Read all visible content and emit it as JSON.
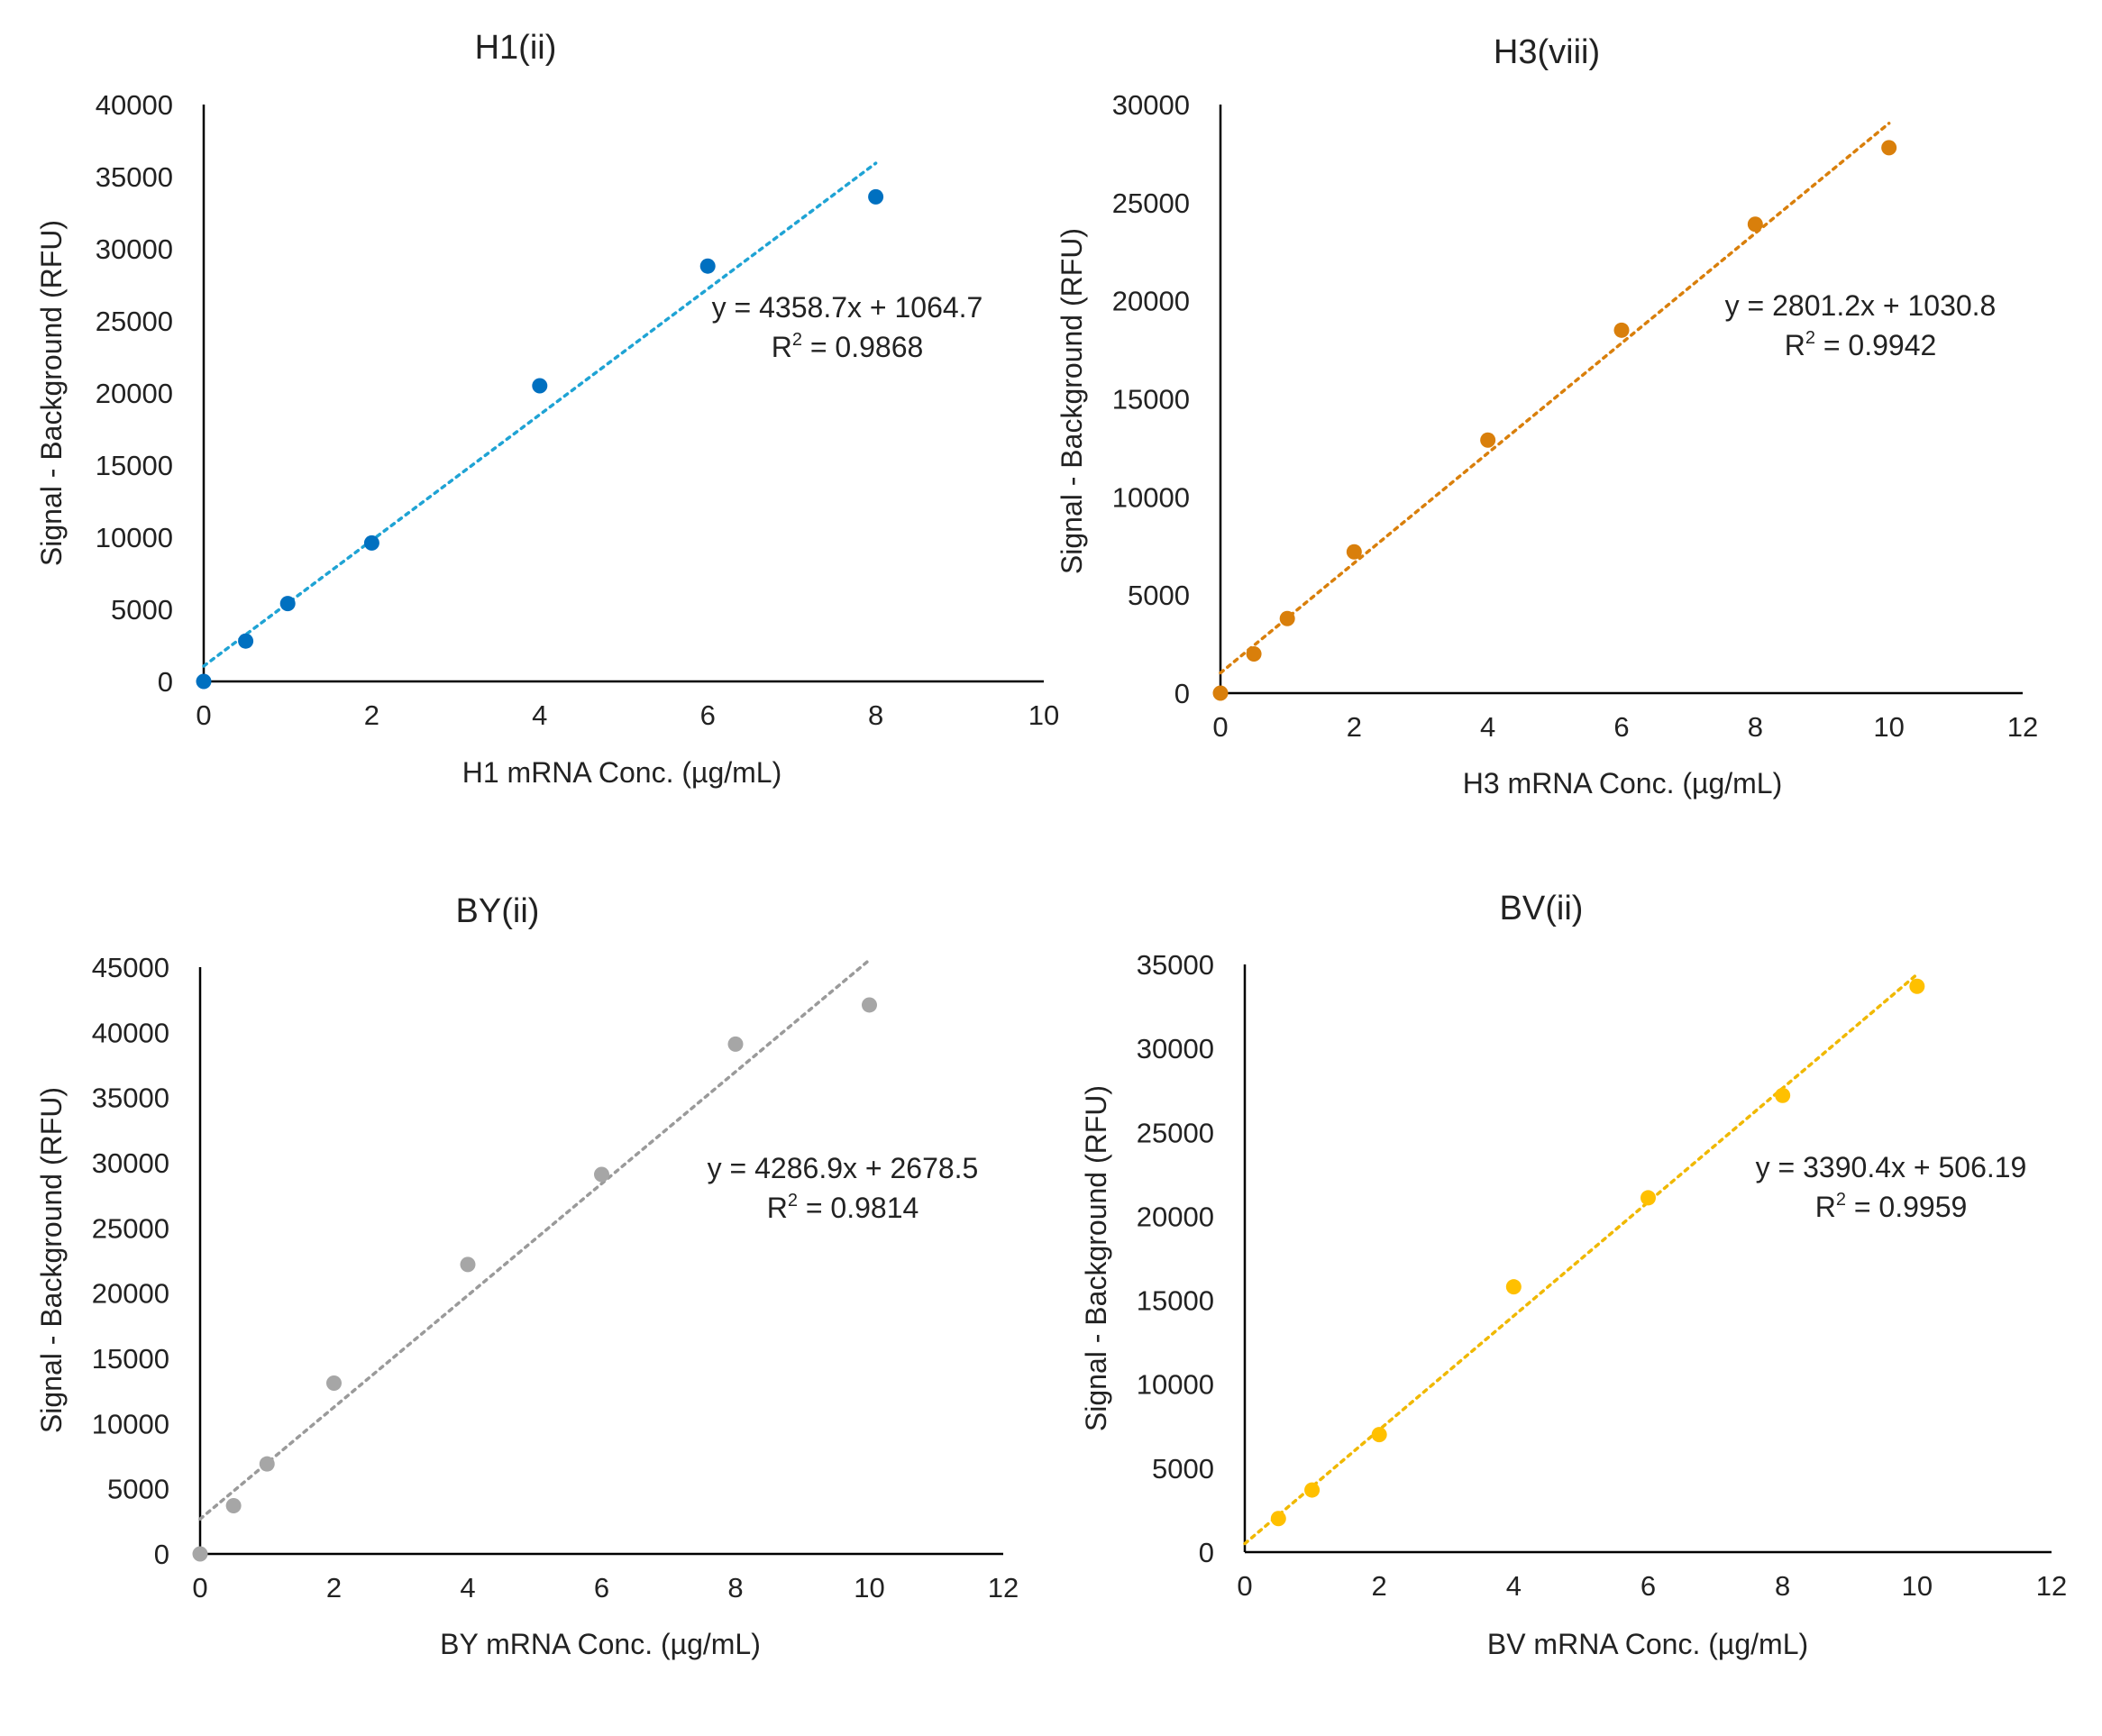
{
  "chart_data": [
    {
      "type": "scatter",
      "title": "H1(ii)",
      "xlabel": "H1 mRNA Conc. (µg/mL)",
      "ylabel": "Signal - Background (RFU)",
      "xlim": [
        0,
        10
      ],
      "ylim": [
        0,
        40000
      ],
      "xticks": [
        "0",
        "2",
        "4",
        "6",
        "8",
        "10"
      ],
      "yticks": [
        "0",
        "5000",
        "10000",
        "15000",
        "20000",
        "25000",
        "30000",
        "35000",
        "40000"
      ],
      "color": "#0070C0",
      "trend_color": "#1FA3D4",
      "grid": false,
      "points": [
        {
          "x": 0,
          "y": 0
        },
        {
          "x": 0.5,
          "y": 2800
        },
        {
          "x": 1,
          "y": 5400
        },
        {
          "x": 2,
          "y": 9600
        },
        {
          "x": 4,
          "y": 20500
        },
        {
          "x": 6,
          "y": 28800
        },
        {
          "x": 8,
          "y": 33600
        }
      ],
      "trendline": {
        "slope": 4358.7,
        "intercept": 1064.7,
        "x_range": [
          0,
          8
        ]
      },
      "equation": {
        "line1": "y = 4358.7x + 1064.7",
        "r2_prefix": "R",
        "r2_sup": "2",
        "r2_value": " = 0.9868"
      }
    },
    {
      "type": "scatter",
      "title": "H3(viii)",
      "xlabel": "H3 mRNA Conc. (µg/mL)",
      "ylabel": "Signal - Background (RFU)",
      "xlim": [
        0,
        12
      ],
      "ylim": [
        0,
        30000
      ],
      "xticks": [
        "0",
        "2",
        "4",
        "6",
        "8",
        "10",
        "12"
      ],
      "yticks": [
        "0",
        "5000",
        "10000",
        "15000",
        "20000",
        "25000",
        "30000"
      ],
      "color": "#D97F0B",
      "trend_color": "#D97F0B",
      "grid": false,
      "points": [
        {
          "x": 0,
          "y": 0
        },
        {
          "x": 0.5,
          "y": 2000
        },
        {
          "x": 1,
          "y": 3800
        },
        {
          "x": 2,
          "y": 7200
        },
        {
          "x": 4,
          "y": 12900
        },
        {
          "x": 6,
          "y": 18500
        },
        {
          "x": 8,
          "y": 23900
        },
        {
          "x": 10,
          "y": 27800
        }
      ],
      "trendline": {
        "slope": 2801.2,
        "intercept": 1030.8,
        "x_range": [
          0,
          10
        ]
      },
      "equation": {
        "line1": "y = 2801.2x + 1030.8",
        "r2_prefix": "R",
        "r2_sup": "2",
        "r2_value": " = 0.9942"
      }
    },
    {
      "type": "scatter",
      "title": "BY(ii)",
      "xlabel": "BY mRNA Conc. (µg/mL)",
      "ylabel": "Signal - Background (RFU)",
      "xlim": [
        0,
        12
      ],
      "ylim": [
        0,
        45000
      ],
      "xticks": [
        "0",
        "2",
        "4",
        "6",
        "8",
        "10",
        "12"
      ],
      "yticks": [
        "0",
        "5000",
        "10000",
        "15000",
        "20000",
        "25000",
        "30000",
        "35000",
        "40000",
        "45000"
      ],
      "color": "#A6A6A6",
      "trend_color": "#9A9A9A",
      "grid": false,
      "points": [
        {
          "x": 0,
          "y": 0
        },
        {
          "x": 0.5,
          "y": 3700
        },
        {
          "x": 1,
          "y": 6900
        },
        {
          "x": 2,
          "y": 13100
        },
        {
          "x": 4,
          "y": 22200
        },
        {
          "x": 6,
          "y": 29100
        },
        {
          "x": 8,
          "y": 39100
        },
        {
          "x": 10,
          "y": 42100
        }
      ],
      "trendline": {
        "slope": 4286.9,
        "intercept": 2678.5,
        "x_range": [
          0,
          10
        ]
      },
      "equation": {
        "line1": "y = 4286.9x + 2678.5",
        "r2_prefix": "R",
        "r2_sup": "2",
        "r2_value": " = 0.9814"
      }
    },
    {
      "type": "scatter",
      "title": "BV(ii)",
      "xlabel": "BV mRNA Conc. (µg/mL)",
      "ylabel": "Signal - Background (RFU)",
      "xlim": [
        0,
        12
      ],
      "ylim": [
        0,
        35000
      ],
      "xticks": [
        "0",
        "2",
        "4",
        "6",
        "8",
        "10",
        "12"
      ],
      "yticks": [
        "0",
        "5000",
        "10000",
        "15000",
        "20000",
        "25000",
        "30000",
        "35000"
      ],
      "color": "#FFC000",
      "trend_color": "#F0B800",
      "grid": false,
      "points": [
        {
          "x": 0.5,
          "y": 2000
        },
        {
          "x": 1,
          "y": 3700
        },
        {
          "x": 2,
          "y": 7000
        },
        {
          "x": 4,
          "y": 15800
        },
        {
          "x": 6,
          "y": 21100
        },
        {
          "x": 8,
          "y": 27200
        },
        {
          "x": 10,
          "y": 33700
        }
      ],
      "trendline": {
        "slope": 3390.4,
        "intercept": 506.19,
        "x_range": [
          0,
          10
        ]
      },
      "equation": {
        "line1": "y = 3390.4x + 506.19",
        "r2_prefix": "R",
        "r2_sup": "2",
        "r2_value": " = 0.9959"
      }
    }
  ]
}
